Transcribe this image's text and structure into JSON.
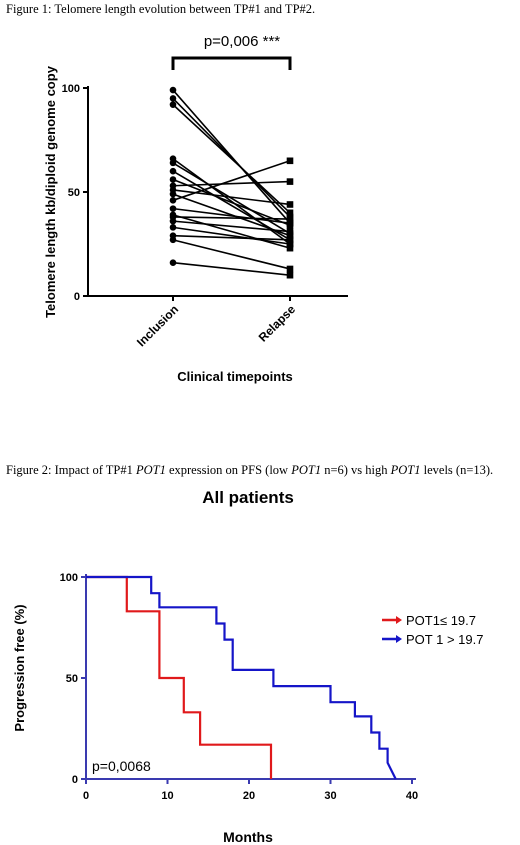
{
  "captions": {
    "fig1": "Figure 1: Telomere length evolution between TP#1 and TP#2.",
    "fig2_pre": "Figure 2: Impact of TP#1 ",
    "fig2_gene1": "POT1",
    "fig2_mid": " expression on PFS (low ",
    "fig2_gene2": "POT1",
    "fig2_post": " n=6) vs high ",
    "fig2_gene3": "POT1",
    "fig2_end": " levels (n=13)."
  },
  "chart_data": [
    {
      "type": "line",
      "title": "",
      "xlabel": "Clinical timepoints",
      "ylabel": "Telomere length kb/diploid genome copy",
      "categories": [
        "Inclusion",
        "Relapse"
      ],
      "yticks": [
        "0",
        "50",
        "100"
      ],
      "ylim": [
        0,
        105
      ],
      "annotation": "p=0,006 ***",
      "series": [
        {
          "values": [
            99,
            35
          ]
        },
        {
          "values": [
            95,
            38
          ]
        },
        {
          "values": [
            92,
            40
          ]
        },
        {
          "values": [
            66,
            25
          ]
        },
        {
          "values": [
            64,
            30
          ]
        },
        {
          "values": [
            60,
            27
          ]
        },
        {
          "values": [
            56,
            34
          ]
        },
        {
          "values": [
            53,
            55
          ]
        },
        {
          "values": [
            51,
            44
          ]
        },
        {
          "values": [
            49,
            29
          ]
        },
        {
          "values": [
            46,
            65
          ]
        },
        {
          "values": [
            42,
            35
          ]
        },
        {
          "values": [
            39,
            23
          ]
        },
        {
          "values": [
            38,
            37
          ]
        },
        {
          "values": [
            36,
            31
          ]
        },
        {
          "values": [
            33,
            25
          ]
        },
        {
          "values": [
            29,
            27
          ]
        },
        {
          "values": [
            27,
            13
          ]
        },
        {
          "values": [
            16,
            10
          ]
        }
      ],
      "marker_colors": {
        "inclusion": "#000000",
        "relapse": "#000000"
      }
    },
    {
      "type": "line",
      "title": "All patients",
      "xlabel": "Months",
      "ylabel": "Progression free (%)",
      "xticks": [
        "0",
        "10",
        "20",
        "30",
        "40"
      ],
      "yticks": [
        "0",
        "50",
        "100"
      ],
      "xlim": [
        0,
        40
      ],
      "ylim": [
        0,
        100
      ],
      "annotation": "p=0,0068",
      "legend_position": "right",
      "series": [
        {
          "name": "POT1≤ 19.7",
          "color": "#e0191b",
          "x": [
            0,
            5,
            5,
            9,
            9,
            12,
            12,
            14,
            14,
            22.7,
            22.7
          ],
          "y": [
            100,
            100,
            83,
            83,
            50,
            50,
            33,
            33,
            17,
            17,
            0
          ]
        },
        {
          "name": "POT 1 > 19.7",
          "color": "#1515c8",
          "x": [
            0,
            8,
            8,
            9,
            9,
            16,
            16,
            17,
            17,
            18,
            18,
            23,
            23,
            30,
            30,
            33,
            33,
            35,
            35,
            36,
            36,
            37,
            37,
            38
          ],
          "y": [
            100,
            100,
            92,
            92,
            85,
            85,
            77,
            77,
            69,
            69,
            54,
            54,
            46,
            46,
            38,
            38,
            31,
            31,
            23,
            23,
            15,
            15,
            8,
            0
          ]
        }
      ]
    }
  ]
}
